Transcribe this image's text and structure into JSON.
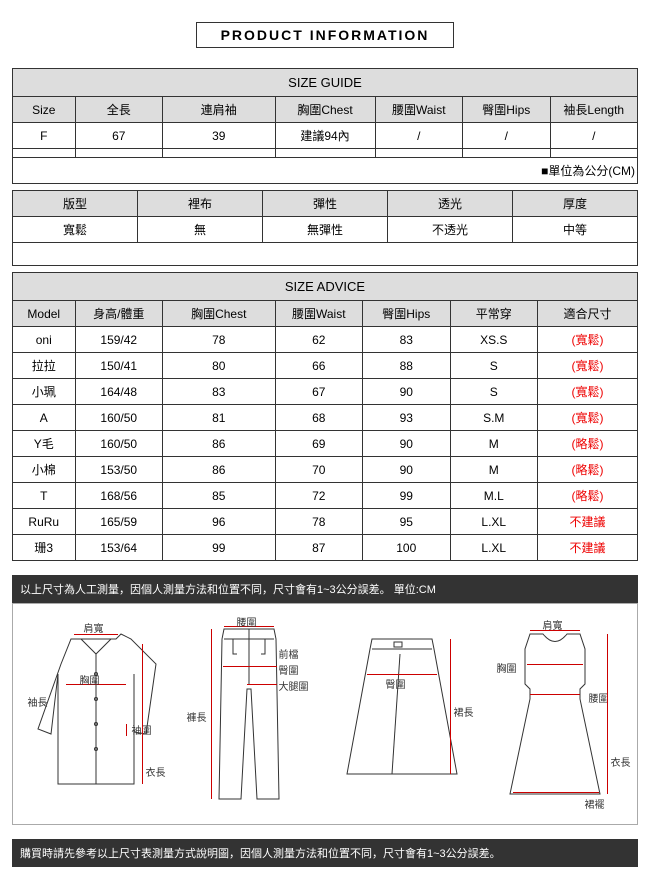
{
  "title": "PRODUCT INFORMATION",
  "sizeGuide": {
    "header": "SIZE GUIDE",
    "cols": [
      "Size",
      "全長",
      "連肩袖",
      "胸圍Chest",
      "腰圍Waist",
      "臀圍Hips",
      "袖長Length"
    ],
    "rows": [
      [
        "F",
        "67",
        "39",
        "建議94內",
        "/",
        "/",
        "/"
      ],
      [
        "",
        "",
        "",
        "",
        "",
        "",
        ""
      ]
    ],
    "note": "■單位為公分(CM)"
  },
  "props": {
    "cols": [
      "版型",
      "裡布",
      "彈性",
      "透光",
      "厚度"
    ],
    "vals": [
      "寬鬆",
      "無",
      "無彈性",
      "不透光",
      "中等"
    ]
  },
  "sizeAdvice": {
    "header": "SIZE ADVICE",
    "cols": [
      "Model",
      "身高/體重",
      "胸圍Chest",
      "腰圍Waist",
      "臀圍Hips",
      "平常穿",
      "適合尺寸"
    ],
    "rows": [
      [
        "oni",
        "159/42",
        "78",
        "62",
        "83",
        "XS.S",
        "(寬鬆)"
      ],
      [
        "拉拉",
        "150/41",
        "80",
        "66",
        "88",
        "S",
        "(寬鬆)"
      ],
      [
        "小珮",
        "164/48",
        "83",
        "67",
        "90",
        "S",
        "(寬鬆)"
      ],
      [
        "A",
        "160/50",
        "81",
        "68",
        "93",
        "S.M",
        "(寬鬆)"
      ],
      [
        "Y毛",
        "160/50",
        "86",
        "69",
        "90",
        "M",
        "(略鬆)"
      ],
      [
        "小棉",
        "153/50",
        "86",
        "70",
        "90",
        "M",
        "(略鬆)"
      ],
      [
        "T",
        "168/56",
        "85",
        "72",
        "99",
        "M.L",
        "(略鬆)"
      ],
      [
        "RuRu",
        "165/59",
        "96",
        "78",
        "95",
        "L.XL",
        "不建議"
      ],
      [
        "珊3",
        "153/64",
        "99",
        "87",
        "100",
        "L.XL",
        "不建議"
      ]
    ]
  },
  "bar1": "以上尺寸為人工測量，因個人測量方法和位置不同，尺寸會有1~3公分誤差。 單位:CM",
  "bar2": "購買時請先參考以上尺寸表測量方式說明圖，因個人測量方法和位置不同，尺寸會有1~3公分誤差。",
  "diagram": {
    "shirt": {
      "top": "肩寬",
      "sleeve": "袖長",
      "chest": "胸圍",
      "cuff": "袖圍",
      "length": "衣長"
    },
    "pants": {
      "top": "腰圍",
      "front": "前檔",
      "hip": "臀圍",
      "thigh": "大腿圍",
      "length": "褲長"
    },
    "skirt": {
      "hip": "臀圍",
      "length": "裙長"
    },
    "dress": {
      "top": "肩寬",
      "chest": "胸圍",
      "waist": "腰圍",
      "length": "衣長",
      "hem": "裙襬"
    }
  }
}
